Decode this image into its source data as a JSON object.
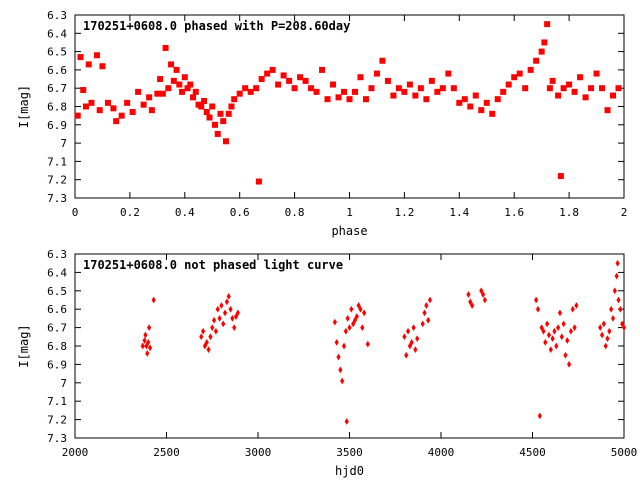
{
  "chart_data": [
    {
      "type": "scatter",
      "title": "170251+0608.0 phased with P=208.60day",
      "xlabel": "phase",
      "ylabel": "I[mag]",
      "xlim": [
        0,
        2
      ],
      "ylim": [
        6.3,
        7.3
      ],
      "y_inverted": true,
      "grid": false,
      "marker_color": "#ff0000",
      "marker_shape": "filled-square",
      "x_ticks": [
        "0",
        "0.2",
        "0.4",
        "0.6",
        "0.8",
        "1",
        "1.2",
        "1.4",
        "1.6",
        "1.8",
        "2"
      ],
      "y_ticks": [
        "6.3",
        "6.4",
        "6.5",
        "6.6",
        "6.7",
        "6.8",
        "6.9",
        "7",
        "7.1",
        "7.2",
        "7.3"
      ],
      "series": [
        {
          "points": [
            [
              0.01,
              6.85
            ],
            [
              0.02,
              6.53
            ],
            [
              0.03,
              6.71
            ],
            [
              0.04,
              6.8
            ],
            [
              0.05,
              6.57
            ],
            [
              0.06,
              6.78
            ],
            [
              0.08,
              6.52
            ],
            [
              0.09,
              6.82
            ],
            [
              0.1,
              6.58
            ],
            [
              0.12,
              6.78
            ],
            [
              0.14,
              6.81
            ],
            [
              0.15,
              6.88
            ],
            [
              0.17,
              6.85
            ],
            [
              0.19,
              6.78
            ],
            [
              0.21,
              6.83
            ],
            [
              0.23,
              6.72
            ],
            [
              0.25,
              6.79
            ],
            [
              0.27,
              6.75
            ],
            [
              0.28,
              6.82
            ],
            [
              0.3,
              6.73
            ],
            [
              0.31,
              6.65
            ],
            [
              0.32,
              6.73
            ],
            [
              0.33,
              6.48
            ],
            [
              0.34,
              6.7
            ],
            [
              0.35,
              6.57
            ],
            [
              0.36,
              6.66
            ],
            [
              0.37,
              6.6
            ],
            [
              0.38,
              6.68
            ],
            [
              0.39,
              6.72
            ],
            [
              0.4,
              6.64
            ],
            [
              0.41,
              6.7
            ],
            [
              0.42,
              6.68
            ],
            [
              0.43,
              6.75
            ],
            [
              0.44,
              6.72
            ],
            [
              0.45,
              6.79
            ],
            [
              0.46,
              6.8
            ],
            [
              0.47,
              6.77
            ],
            [
              0.48,
              6.83
            ],
            [
              0.49,
              6.86
            ],
            [
              0.5,
              6.8
            ],
            [
              0.51,
              6.9
            ],
            [
              0.52,
              6.95
            ],
            [
              0.53,
              6.84
            ],
            [
              0.54,
              6.88
            ],
            [
              0.55,
              6.99
            ],
            [
              0.56,
              6.84
            ],
            [
              0.57,
              6.8
            ],
            [
              0.58,
              6.76
            ],
            [
              0.6,
              6.73
            ],
            [
              0.62,
              6.7
            ],
            [
              0.64,
              6.72
            ],
            [
              0.66,
              6.7
            ],
            [
              0.67,
              7.21
            ],
            [
              0.68,
              6.65
            ],
            [
              0.7,
              6.62
            ],
            [
              0.72,
              6.6
            ],
            [
              0.74,
              6.68
            ],
            [
              0.76,
              6.63
            ],
            [
              0.78,
              6.66
            ],
            [
              0.8,
              6.7
            ],
            [
              0.82,
              6.64
            ],
            [
              0.84,
              6.66
            ],
            [
              0.86,
              6.7
            ],
            [
              0.88,
              6.72
            ],
            [
              0.9,
              6.6
            ],
            [
              0.92,
              6.76
            ],
            [
              0.94,
              6.68
            ],
            [
              0.96,
              6.75
            ],
            [
              0.98,
              6.72
            ],
            [
              1.0,
              6.76
            ],
            [
              1.02,
              6.72
            ],
            [
              1.04,
              6.64
            ],
            [
              1.06,
              6.76
            ],
            [
              1.08,
              6.7
            ],
            [
              1.1,
              6.62
            ],
            [
              1.12,
              6.55
            ],
            [
              1.14,
              6.66
            ],
            [
              1.16,
              6.74
            ],
            [
              1.18,
              6.7
            ],
            [
              1.2,
              6.72
            ],
            [
              1.22,
              6.68
            ],
            [
              1.24,
              6.74
            ],
            [
              1.26,
              6.7
            ],
            [
              1.28,
              6.76
            ],
            [
              1.3,
              6.66
            ],
            [
              1.32,
              6.72
            ],
            [
              1.34,
              6.7
            ],
            [
              1.36,
              6.62
            ],
            [
              1.38,
              6.7
            ],
            [
              1.4,
              6.78
            ],
            [
              1.42,
              6.76
            ],
            [
              1.44,
              6.8
            ],
            [
              1.46,
              6.74
            ],
            [
              1.48,
              6.82
            ],
            [
              1.5,
              6.78
            ],
            [
              1.52,
              6.84
            ],
            [
              1.54,
              6.76
            ],
            [
              1.56,
              6.72
            ],
            [
              1.58,
              6.68
            ],
            [
              1.6,
              6.64
            ],
            [
              1.62,
              6.62
            ],
            [
              1.64,
              6.7
            ],
            [
              1.66,
              6.6
            ],
            [
              1.68,
              6.55
            ],
            [
              1.7,
              6.5
            ],
            [
              1.71,
              6.45
            ],
            [
              1.72,
              6.35
            ],
            [
              1.73,
              6.7
            ],
            [
              1.74,
              6.66
            ],
            [
              1.76,
              6.74
            ],
            [
              1.77,
              7.18
            ],
            [
              1.78,
              6.7
            ],
            [
              1.8,
              6.68
            ],
            [
              1.82,
              6.72
            ],
            [
              1.84,
              6.64
            ],
            [
              1.86,
              6.75
            ],
            [
              1.88,
              6.7
            ],
            [
              1.9,
              6.62
            ],
            [
              1.92,
              6.7
            ],
            [
              1.94,
              6.82
            ],
            [
              1.96,
              6.74
            ],
            [
              1.98,
              6.7
            ]
          ]
        }
      ]
    },
    {
      "type": "scatter",
      "title": "170251+0608.0 not phased light curve",
      "xlabel": "hjd0",
      "ylabel": "I[mag]",
      "xlim": [
        2000,
        5000
      ],
      "ylim": [
        6.3,
        7.3
      ],
      "y_inverted": true,
      "grid": false,
      "marker_color": "#ff0000",
      "marker_shape": "filled-diamond",
      "x_ticks": [
        "2000",
        "2500",
        "3000",
        "3500",
        "4000",
        "4500",
        "5000"
      ],
      "y_ticks": [
        "6.3",
        "6.4",
        "6.5",
        "6.6",
        "6.7",
        "6.8",
        "6.9",
        "7",
        "7.1",
        "7.2",
        "7.3"
      ],
      "series": [
        {
          "points": [
            [
              2370,
              6.8
            ],
            [
              2380,
              6.77
            ],
            [
              2385,
              6.74
            ],
            [
              2390,
              6.8
            ],
            [
              2395,
              6.84
            ],
            [
              2400,
              6.78
            ],
            [
              2405,
              6.7
            ],
            [
              2410,
              6.81
            ],
            [
              2430,
              6.55
            ],
            [
              2690,
              6.75
            ],
            [
              2700,
              6.72
            ],
            [
              2710,
              6.8
            ],
            [
              2720,
              6.78
            ],
            [
              2730,
              6.82
            ],
            [
              2740,
              6.75
            ],
            [
              2750,
              6.7
            ],
            [
              2760,
              6.66
            ],
            [
              2770,
              6.72
            ],
            [
              2780,
              6.6
            ],
            [
              2790,
              6.65
            ],
            [
              2800,
              6.58
            ],
            [
              2810,
              6.68
            ],
            [
              2820,
              6.62
            ],
            [
              2830,
              6.56
            ],
            [
              2840,
              6.53
            ],
            [
              2850,
              6.6
            ],
            [
              2860,
              6.65
            ],
            [
              2870,
              6.7
            ],
            [
              2880,
              6.64
            ],
            [
              2890,
              6.62
            ],
            [
              3420,
              6.67
            ],
            [
              3430,
              6.78
            ],
            [
              3440,
              6.86
            ],
            [
              3450,
              6.93
            ],
            [
              3460,
              6.99
            ],
            [
              3470,
              6.8
            ],
            [
              3480,
              6.72
            ],
            [
              3485,
              7.21
            ],
            [
              3490,
              6.65
            ],
            [
              3500,
              6.7
            ],
            [
              3510,
              6.6
            ],
            [
              3520,
              6.68
            ],
            [
              3530,
              6.66
            ],
            [
              3540,
              6.64
            ],
            [
              3550,
              6.58
            ],
            [
              3560,
              6.6
            ],
            [
              3570,
              6.7
            ],
            [
              3580,
              6.62
            ],
            [
              3600,
              6.79
            ],
            [
              3800,
              6.75
            ],
            [
              3810,
              6.85
            ],
            [
              3820,
              6.72
            ],
            [
              3830,
              6.8
            ],
            [
              3840,
              6.78
            ],
            [
              3850,
              6.7
            ],
            [
              3860,
              6.82
            ],
            [
              3870,
              6.76
            ],
            [
              3900,
              6.68
            ],
            [
              3910,
              6.62
            ],
            [
              3920,
              6.58
            ],
            [
              3930,
              6.66
            ],
            [
              3940,
              6.55
            ],
            [
              4150,
              6.52
            ],
            [
              4160,
              6.56
            ],
            [
              4170,
              6.58
            ],
            [
              4220,
              6.5
            ],
            [
              4230,
              6.52
            ],
            [
              4240,
              6.55
            ],
            [
              4520,
              6.55
            ],
            [
              4530,
              6.6
            ],
            [
              4540,
              7.18
            ],
            [
              4550,
              6.7
            ],
            [
              4560,
              6.72
            ],
            [
              4570,
              6.78
            ],
            [
              4580,
              6.68
            ],
            [
              4590,
              6.74
            ],
            [
              4600,
              6.82
            ],
            [
              4610,
              6.76
            ],
            [
              4620,
              6.72
            ],
            [
              4630,
              6.8
            ],
            [
              4640,
              6.7
            ],
            [
              4650,
              6.62
            ],
            [
              4660,
              6.75
            ],
            [
              4670,
              6.68
            ],
            [
              4680,
              6.85
            ],
            [
              4690,
              6.77
            ],
            [
              4700,
              6.9
            ],
            [
              4710,
              6.72
            ],
            [
              4720,
              6.6
            ],
            [
              4730,
              6.7
            ],
            [
              4740,
              6.58
            ],
            [
              4870,
              6.7
            ],
            [
              4880,
              6.74
            ],
            [
              4890,
              6.68
            ],
            [
              4900,
              6.8
            ],
            [
              4910,
              6.76
            ],
            [
              4920,
              6.72
            ],
            [
              4930,
              6.6
            ],
            [
              4940,
              6.65
            ],
            [
              4950,
              6.5
            ],
            [
              4960,
              6.42
            ],
            [
              4965,
              6.35
            ],
            [
              4970,
              6.55
            ],
            [
              4980,
              6.6
            ],
            [
              4990,
              6.68
            ],
            [
              5000,
              6.7
            ]
          ]
        }
      ]
    }
  ]
}
